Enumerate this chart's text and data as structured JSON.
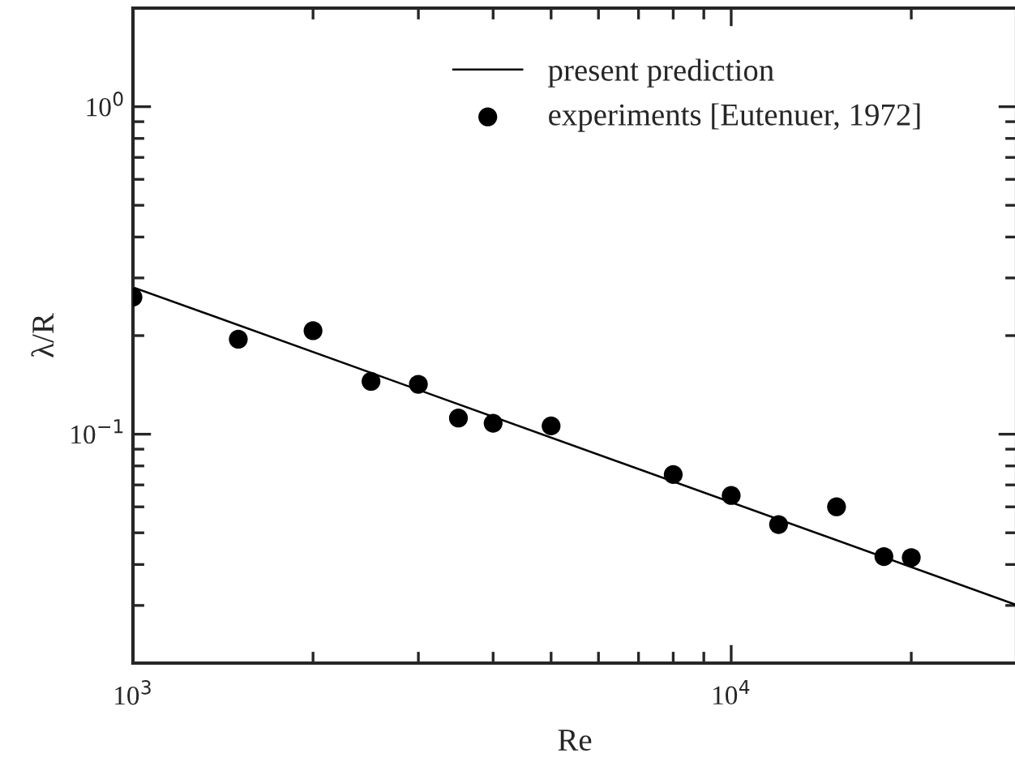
{
  "chart_data": {
    "type": "scatter",
    "xlabel": "Re",
    "ylabel": "λ/R",
    "log": "xy",
    "xlim": [
      1000,
      30000
    ],
    "ylim": [
      0.02,
      2
    ],
    "xticks": [
      {
        "value": 1000,
        "label": "10$^{3}$"
      },
      {
        "value": 10000,
        "label": "10$^{4}$"
      }
    ],
    "yticks": [
      {
        "value": 0.1,
        "label": "10$^{−1}$"
      },
      {
        "value": 1,
        "label": "10$^{0}$"
      }
    ],
    "legend": "top right",
    "grid": false,
    "series": [
      {
        "name": "present prediction",
        "type": "line",
        "color": "#000000",
        "marker": "none",
        "line_style": "solid",
        "x": [
          1000,
          30000
        ],
        "values": [
          0.281,
          0.0301
        ]
      },
      {
        "name": "experiments [Eutenuer, 1972]",
        "color": "#000000",
        "marker": "circle",
        "x": [
          1000,
          1500,
          2000,
          2500,
          3000,
          3500,
          4000,
          5000,
          8000,
          10000,
          12000,
          15000,
          18000,
          20000
        ],
        "values": [
          0.262,
          0.195,
          0.207,
          0.145,
          0.142,
          0.112,
          0.108,
          0.106,
          0.0753,
          0.065,
          0.053,
          0.06,
          0.0423,
          0.042
        ]
      }
    ]
  }
}
